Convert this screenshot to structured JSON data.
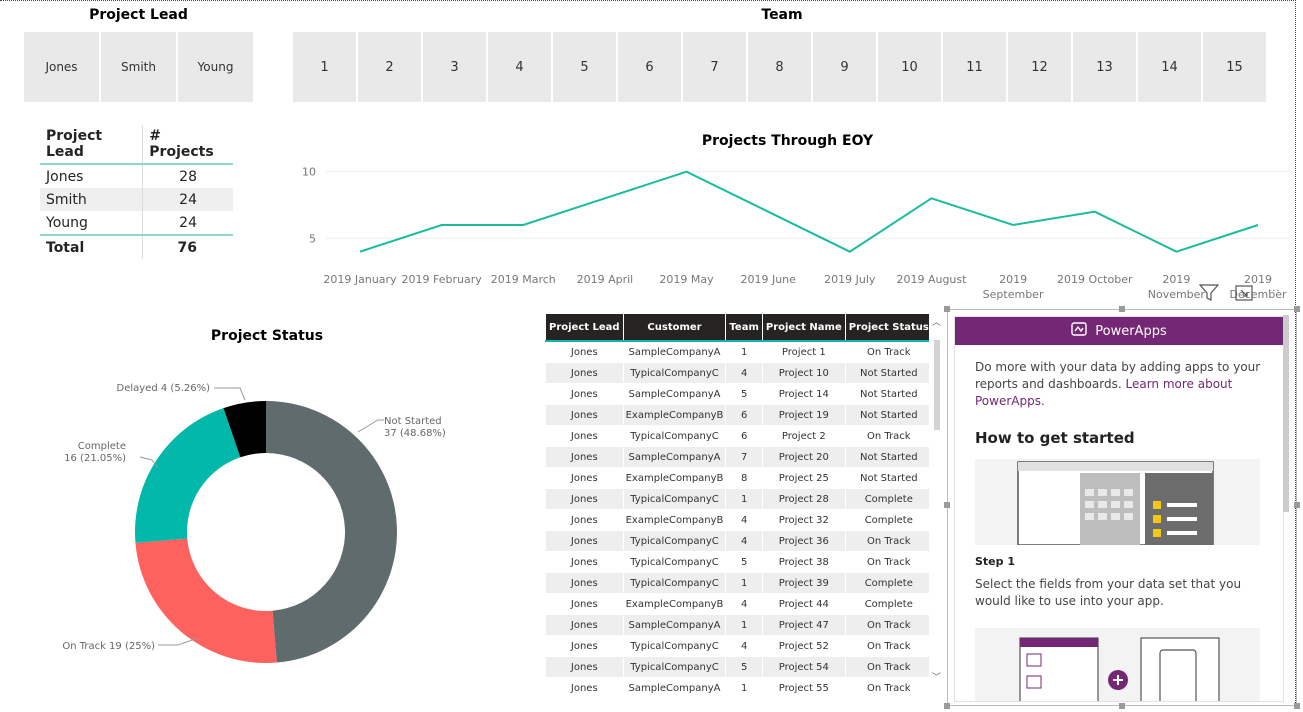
{
  "slicers": {
    "lead_title": "Project Lead",
    "leads": [
      "Jones",
      "Smith",
      "Young"
    ],
    "team_title": "Team",
    "teams": [
      "1",
      "2",
      "3",
      "4",
      "5",
      "6",
      "7",
      "8",
      "9",
      "10",
      "11",
      "12",
      "13",
      "14",
      "15"
    ]
  },
  "summary": {
    "headers": [
      "Project Lead",
      "# Projects"
    ],
    "rows": [
      [
        "Jones",
        "28"
      ],
      [
        "Smith",
        "24"
      ],
      [
        "Young",
        "24"
      ]
    ],
    "total": [
      "Total",
      "76"
    ]
  },
  "chart_data": [
    {
      "type": "line",
      "title": "Projects Through EOY",
      "x": [
        "2019 January",
        "2019 February",
        "2019 March",
        "2019 April",
        "2019 May",
        "2019 June",
        "2019 July",
        "2019 August",
        "2019 September",
        "2019 October",
        "2019 November",
        "2019 December"
      ],
      "x_tick_labels": [
        [
          "2019 January"
        ],
        [
          "2019 February"
        ],
        [
          "2019 March"
        ],
        [
          "2019 April"
        ],
        [
          "2019 May"
        ],
        [
          "2019 June"
        ],
        [
          "2019 July"
        ],
        [
          "2019 August"
        ],
        [
          "2019",
          "September"
        ],
        [
          "2019 October"
        ],
        [
          "2019",
          "November"
        ],
        [
          "2019",
          "December"
        ]
      ],
      "values": [
        4,
        6,
        6,
        8,
        10,
        7,
        4,
        8,
        6,
        7,
        4,
        6
      ],
      "yticks": [
        "5",
        "10"
      ],
      "ylim": [
        3,
        10.5
      ],
      "color": "#1abc9c"
    },
    {
      "type": "pie",
      "title": "Project Status",
      "slices": [
        {
          "label": "Not Started",
          "value": 37,
          "pct": "48.68%",
          "color": "#5f6b6d",
          "text": [
            "Not Started",
            "37 (48.68%)"
          ]
        },
        {
          "label": "On Track",
          "value": 19,
          "pct": "25%",
          "color": "#fd625e",
          "text": [
            "On Track 19 (25%)"
          ]
        },
        {
          "label": "Complete",
          "value": 16,
          "pct": "21.05%",
          "color": "#01b8aa",
          "text": [
            "Complete",
            "16 (21.05%)"
          ]
        },
        {
          "label": "Delayed",
          "value": 4,
          "pct": "5.26%",
          "color": "#000000",
          "text": [
            "Delayed 4 (5.26%)"
          ]
        }
      ]
    }
  ],
  "grid": {
    "headers": [
      "Project Lead",
      "Customer",
      "Team",
      "Project Name",
      "Project Status"
    ],
    "rows": [
      [
        "Jones",
        "SampleCompanyA",
        "1",
        "Project 1",
        "On Track"
      ],
      [
        "Jones",
        "TypicalCompanyC",
        "4",
        "Project 10",
        "Not Started"
      ],
      [
        "Jones",
        "SampleCompanyA",
        "5",
        "Project 14",
        "Not Started"
      ],
      [
        "Jones",
        "ExampleCompanyB",
        "6",
        "Project 19",
        "Not Started"
      ],
      [
        "Jones",
        "TypicalCompanyC",
        "6",
        "Project 2",
        "On Track"
      ],
      [
        "Jones",
        "SampleCompanyA",
        "7",
        "Project 20",
        "Not Started"
      ],
      [
        "Jones",
        "ExampleCompanyB",
        "8",
        "Project 25",
        "Not Started"
      ],
      [
        "Jones",
        "TypicalCompanyC",
        "1",
        "Project 28",
        "Complete"
      ],
      [
        "Jones",
        "ExampleCompanyB",
        "4",
        "Project 32",
        "Complete"
      ],
      [
        "Jones",
        "TypicalCompanyC",
        "4",
        "Project 36",
        "On Track"
      ],
      [
        "Jones",
        "TypicalCompanyC",
        "5",
        "Project 38",
        "On Track"
      ],
      [
        "Jones",
        "TypicalCompanyC",
        "1",
        "Project 39",
        "Complete"
      ],
      [
        "Jones",
        "ExampleCompanyB",
        "4",
        "Project 44",
        "Complete"
      ],
      [
        "Jones",
        "SampleCompanyA",
        "1",
        "Project 47",
        "On Track"
      ],
      [
        "Jones",
        "TypicalCompanyC",
        "4",
        "Project 52",
        "On Track"
      ],
      [
        "Jones",
        "TypicalCompanyC",
        "5",
        "Project 54",
        "On Track"
      ],
      [
        "Jones",
        "SampleCompanyA",
        "1",
        "Project 55",
        "On Track"
      ]
    ]
  },
  "powerapps": {
    "header": "PowerApps",
    "intro": "Do more with your data by adding apps to your reports and dashboards.",
    "link": "Learn more about PowerApps.",
    "how_title": "How to get started",
    "step1_title": "Step 1",
    "step1_text": "Select the fields from your data set that you would like to use into your app."
  },
  "toolbar_icons": [
    "filter-icon",
    "focus-mode-icon",
    "more-options-icon"
  ],
  "colors": {
    "accent": "#01b8aa",
    "powerapps": "#742774"
  }
}
